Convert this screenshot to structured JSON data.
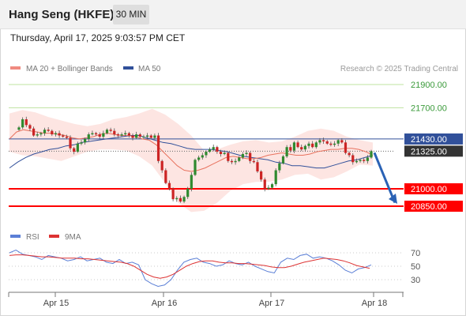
{
  "header": {
    "instrument": "Hang Seng (HKFE)",
    "timeframe": "30 MIN",
    "datetime": "Thursday, April 17, 2025 9:03:57 PM CET"
  },
  "colors": {
    "up": "#2f8a2f",
    "down": "#cc2424",
    "ma20": "#e8735f",
    "bollinger_fill": "#fde2df",
    "ma50": "#31509a",
    "target": "#bfe3a0",
    "support": "#ff0000",
    "pivot": "#31509a",
    "price_tag": "#333333",
    "rsi": "#5b7fd6",
    "rsi_ma": "#dd3333",
    "arrow": "#2a62b5"
  },
  "chart_data": [
    {
      "type": "candlestick",
      "title": "Hang Seng (HKFE)",
      "legend": [
        {
          "name": "MA 20 + Bollinger Bands",
          "color": "#f08a80"
        },
        {
          "name": "MA 50",
          "color": "#31509a"
        }
      ],
      "legend_placement": "top-left",
      "watermark": "Research © 2025 Trading Central",
      "x_ticks": [
        "Apr 15",
        "Apr 16",
        "Apr 17",
        "Apr 18"
      ],
      "ylim": [
        20790,
        21950
      ],
      "levels": [
        {
          "label": "21900.00",
          "value": 21900,
          "kind": "target"
        },
        {
          "label": "21700.00",
          "value": 21700,
          "kind": "target"
        },
        {
          "label": "21430.00",
          "value": 21430,
          "kind": "pivot"
        },
        {
          "label": "21325.00",
          "value": 21325,
          "kind": "last"
        },
        {
          "label": "21000.00",
          "value": 21000,
          "kind": "support"
        },
        {
          "label": "20850.00",
          "value": 20850,
          "kind": "support"
        }
      ],
      "close": [
        21530,
        21600,
        21550,
        21520,
        21460,
        21470,
        21480,
        21510,
        21500,
        21470,
        21480,
        21460,
        21450,
        21440,
        21350,
        21320,
        21390,
        21400,
        21430,
        21470,
        21480,
        21470,
        21450,
        21480,
        21510,
        21500,
        21470,
        21460,
        21470,
        21480,
        21460,
        21440,
        21470,
        21450,
        21450,
        21460,
        21440,
        21460,
        21240,
        21160,
        21050,
        21000,
        20910,
        20920,
        20890,
        20930,
        21000,
        21120,
        21250,
        21270,
        21290,
        21320,
        21340,
        21360,
        21320,
        21300,
        21310,
        21240,
        21230,
        21240,
        21270,
        21300,
        21310,
        21240,
        21230,
        21150,
        21080,
        21000,
        21010,
        21040,
        21160,
        21220,
        21280,
        21360,
        21330,
        21400,
        21360,
        21340,
        21370,
        21390,
        21360,
        21400,
        21420,
        21410,
        21390,
        21380,
        21390,
        21420,
        21400,
        21310,
        21290,
        21230,
        21240,
        21250,
        21240,
        21270,
        21325
      ],
      "ma20": [
        21430,
        21490,
        21510,
        21500,
        21490,
        21480,
        21480,
        21470,
        21460,
        21440,
        21430,
        21440,
        21450,
        21470,
        21480,
        21470,
        21460,
        21460,
        21450,
        21430,
        21420,
        21380,
        21320,
        21260,
        21200,
        21160,
        21150,
        21160,
        21180,
        21210,
        21240,
        21270,
        21280,
        21270,
        21260,
        21260,
        21270,
        21290,
        21300,
        21310,
        21300,
        21290,
        21290,
        21300,
        21320,
        21330,
        21340,
        21340,
        21350,
        21350,
        21340,
        21320,
        21290
      ],
      "ma50": [
        21180,
        21230,
        21270,
        21300,
        21320,
        21340,
        21350,
        21370,
        21380,
        21400,
        21410,
        21420,
        21430,
        21440,
        21450,
        21460,
        21460,
        21440,
        21420,
        21400,
        21390,
        21370,
        21350,
        21340,
        21340,
        21340,
        21330,
        21320,
        21300,
        21280,
        21270,
        21260,
        21250,
        21230,
        21220,
        21200,
        21200,
        21190,
        21180,
        21180,
        21200,
        21220,
        21240,
        21250,
        21270,
        21290
      ],
      "bb_upper": [
        21650,
        21680,
        21660,
        21620,
        21590,
        21560,
        21540,
        21560,
        21600,
        21620,
        21650,
        21690,
        21640,
        21560,
        21460,
        21330,
        21340,
        21380,
        21410,
        21420,
        21400,
        21410,
        21450,
        21500,
        21520,
        21500,
        21450,
        21420,
        21400
      ],
      "bb_lower": [
        21320,
        21290,
        21280,
        21260,
        21240,
        21280,
        21320,
        21340,
        21340,
        21330,
        21280,
        21200,
        21050,
        20880,
        20800,
        20810,
        20880,
        20980,
        21040,
        21060,
        21060,
        21080,
        21120,
        21130,
        21080,
        21100,
        21150,
        21210,
        21200
      ]
    },
    {
      "type": "line",
      "legend": [
        {
          "name": "RSI",
          "color": "#5b7fd6"
        },
        {
          "name": "9MA",
          "color": "#dd3333"
        }
      ],
      "y_ticks": [
        "70",
        "50",
        "30"
      ],
      "ylim": [
        0,
        100
      ],
      "rsi": [
        70,
        74,
        68,
        66,
        64,
        60,
        66,
        64,
        62,
        58,
        60,
        64,
        58,
        60,
        62,
        56,
        54,
        60,
        54,
        56,
        52,
        30,
        24,
        20,
        22,
        30,
        44,
        56,
        60,
        62,
        56,
        54,
        50,
        52,
        58,
        54,
        52,
        56,
        50,
        46,
        42,
        40,
        56,
        62,
        60,
        66,
        68,
        62,
        64,
        62,
        58,
        52,
        44,
        40,
        46,
        48,
        52
      ],
      "ma9": [
        66,
        67,
        67,
        66,
        65,
        64,
        64,
        63,
        62,
        62,
        62,
        61,
        61,
        60,
        59,
        58,
        57,
        56,
        54,
        50,
        44,
        38,
        34,
        32,
        34,
        38,
        44,
        50,
        54,
        57,
        58,
        58,
        56,
        55,
        55,
        54,
        54,
        53,
        52,
        51,
        49,
        48,
        48,
        50,
        53,
        56,
        58,
        60,
        62,
        61,
        60,
        58,
        55,
        51,
        49,
        47
      ]
    }
  ]
}
